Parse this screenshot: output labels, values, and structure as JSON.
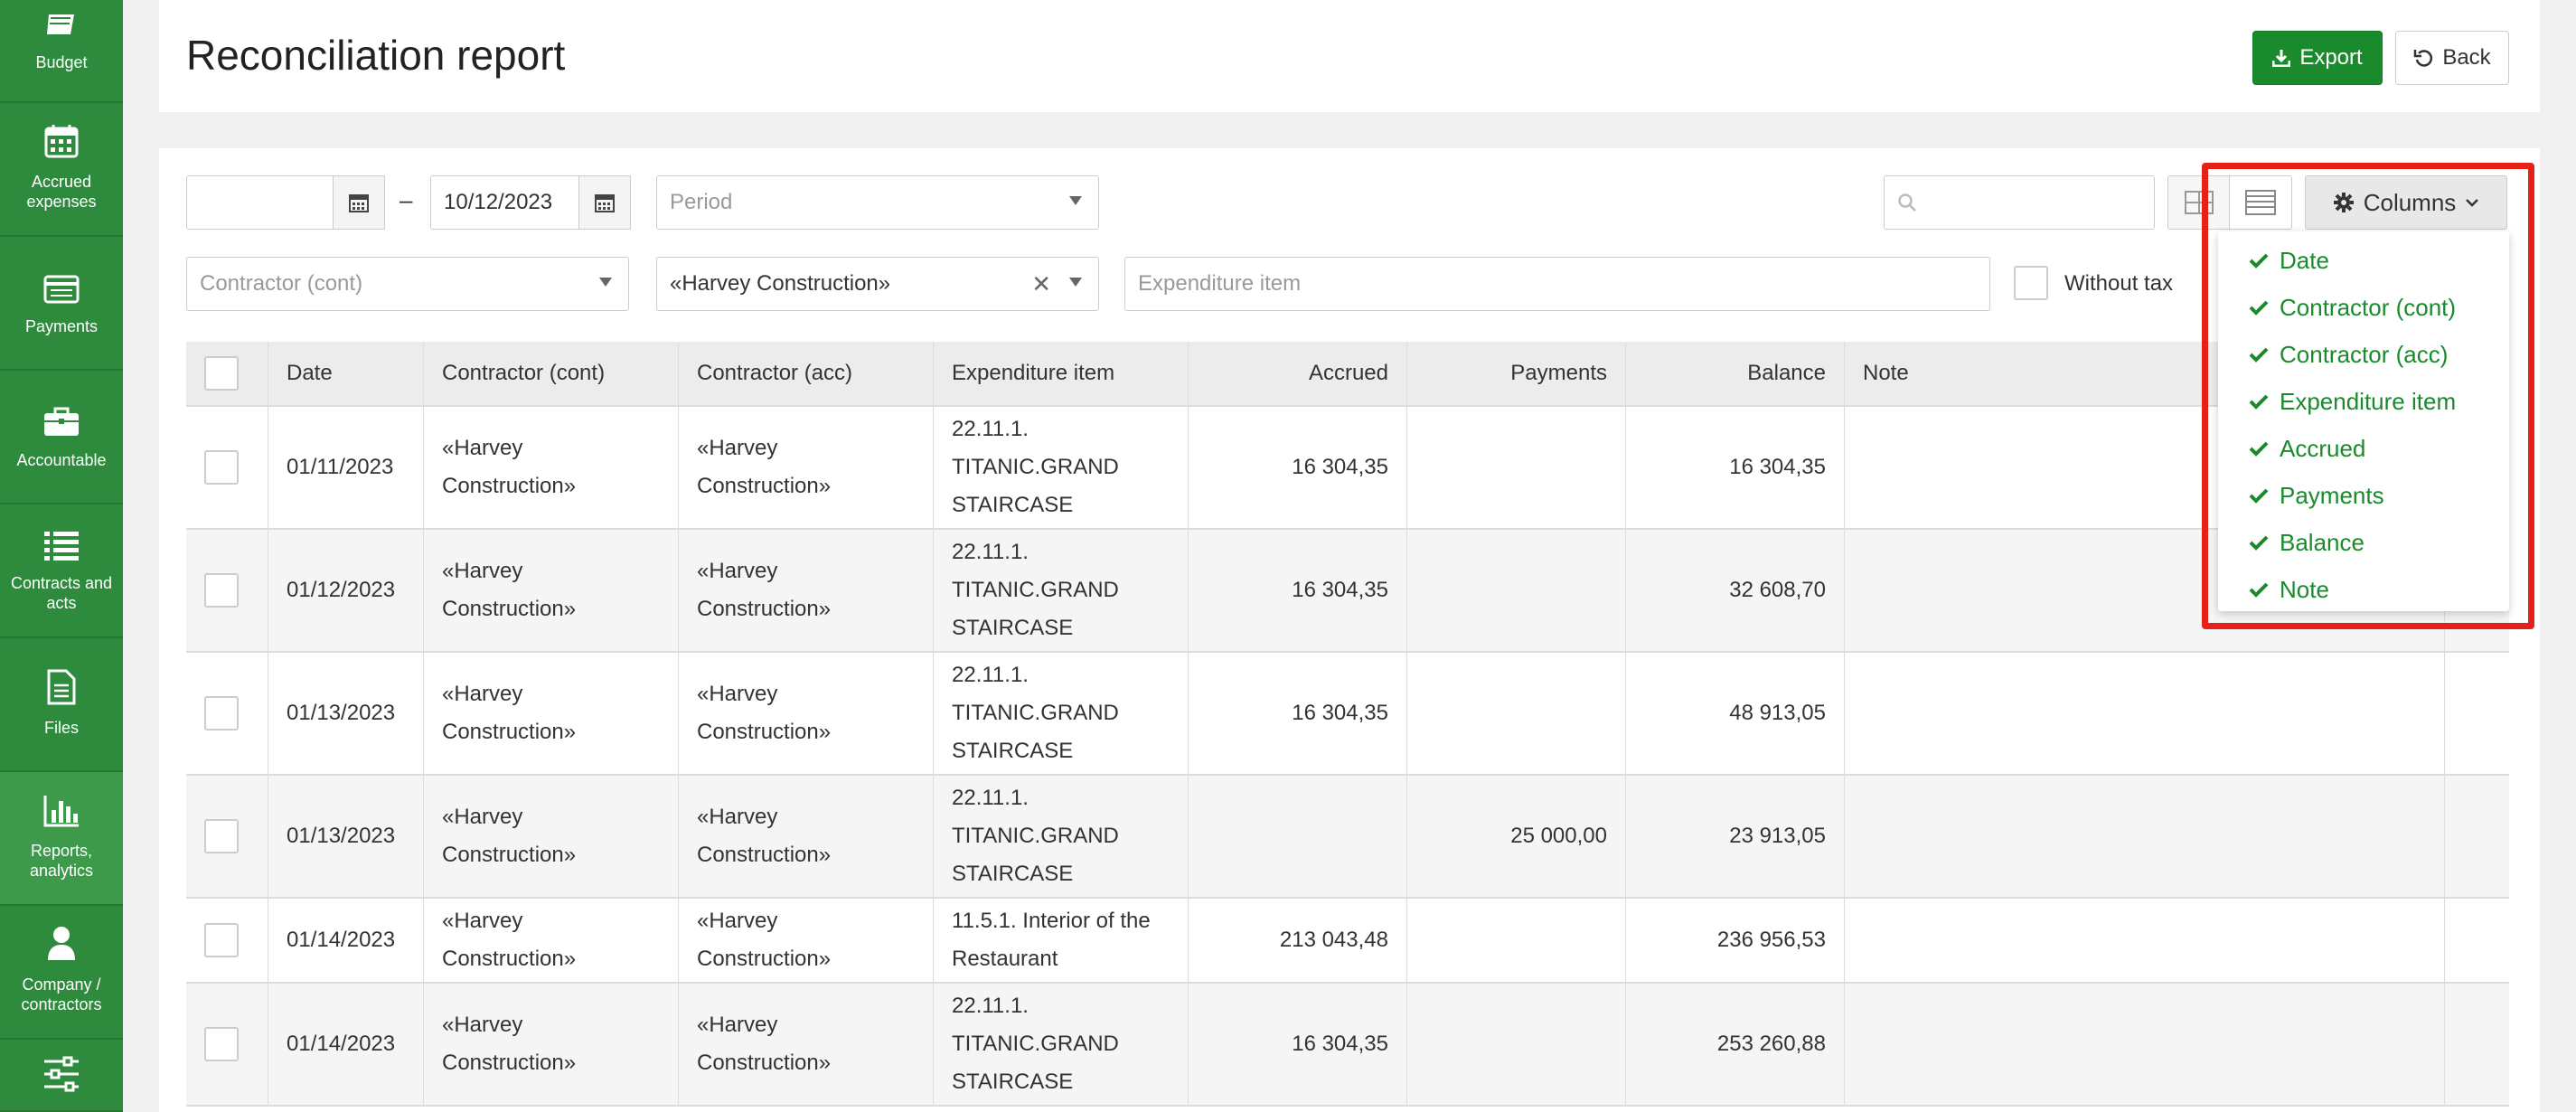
{
  "sidebar": {
    "items": [
      {
        "label": "Budget",
        "icon": "budget-icon"
      },
      {
        "label": "Accrued expenses",
        "icon": "calendar-icon"
      },
      {
        "label": "Payments",
        "icon": "payment-card-icon"
      },
      {
        "label": "Accountable",
        "icon": "briefcase-icon"
      },
      {
        "label": "Contracts and acts",
        "icon": "list-icon"
      },
      {
        "label": "Files",
        "icon": "file-icon"
      },
      {
        "label": "Reports, analytics",
        "icon": "bar-chart-icon"
      },
      {
        "label": "Company / contractors",
        "icon": "user-icon"
      },
      {
        "label": "",
        "icon": "sliders-icon"
      }
    ]
  },
  "header": {
    "title": "Reconciliation report",
    "export_label": "Export",
    "back_label": "Back"
  },
  "filters": {
    "date_from": "",
    "date_to": "10/12/2023",
    "dash": "–",
    "period_placeholder": "Period",
    "contractor_cont_placeholder": "Contractor (cont)",
    "contractor_acc_value": "«Harvey Construction»",
    "expenditure_placeholder": "Expenditure item",
    "without_tax_label": "Without tax",
    "search_placeholder": "",
    "columns_label": "Columns"
  },
  "table": {
    "headers": [
      "",
      "Date",
      "Contractor (cont)",
      "Contractor (acc)",
      "Expenditure item",
      "Accrued",
      "Payments",
      "Balance",
      "Note",
      ""
    ],
    "rows": [
      {
        "date": "01/11/2023",
        "cont": "«Harvey Construction»",
        "acc": "«Harvey Construction»",
        "item": [
          "22.11.1.",
          "TITANIC.GRAND",
          "STAIRCASE"
        ],
        "accrued": "16 304,35",
        "payments": "",
        "balance": "16 304,35",
        "note": ""
      },
      {
        "date": "01/12/2023",
        "cont": "«Harvey Construction»",
        "acc": "«Harvey Construction»",
        "item": [
          "22.11.1.",
          "TITANIC.GRAND",
          "STAIRCASE"
        ],
        "accrued": "16 304,35",
        "payments": "",
        "balance": "32 608,70",
        "note": ""
      },
      {
        "date": "01/13/2023",
        "cont": "«Harvey Construction»",
        "acc": "«Harvey Construction»",
        "item": [
          "22.11.1.",
          "TITANIC.GRAND",
          "STAIRCASE"
        ],
        "accrued": "16 304,35",
        "payments": "",
        "balance": "48 913,05",
        "note": ""
      },
      {
        "date": "01/13/2023",
        "cont": "«Harvey Construction»",
        "acc": "«Harvey Construction»",
        "item": [
          "22.11.1.",
          "TITANIC.GRAND",
          "STAIRCASE"
        ],
        "accrued": "",
        "payments": "25 000,00",
        "balance": "23 913,05",
        "note": ""
      },
      {
        "date": "01/14/2023",
        "cont": "«Harvey Construction»",
        "acc": "«Harvey Construction»",
        "item": [
          "11.5.1. Interior of the",
          "Restaurant"
        ],
        "accrued": "213 043,48",
        "payments": "",
        "balance": "236 956,53",
        "note": ""
      },
      {
        "date": "01/14/2023",
        "cont": "«Harvey Construction»",
        "acc": "«Harvey Construction»",
        "item": [
          "22.11.1.",
          "TITANIC.GRAND",
          "STAIRCASE"
        ],
        "accrued": "16 304,35",
        "payments": "",
        "balance": "253 260,88",
        "note": ""
      }
    ]
  },
  "columns_menu": {
    "items": [
      "Date",
      "Contractor (cont)",
      "Contractor (acc)",
      "Expenditure item",
      "Accrued",
      "Payments",
      "Balance",
      "Note"
    ]
  },
  "colors": {
    "sidebar": "#2e8b3d",
    "accent": "#198b2c",
    "highlight": "#e62117"
  }
}
